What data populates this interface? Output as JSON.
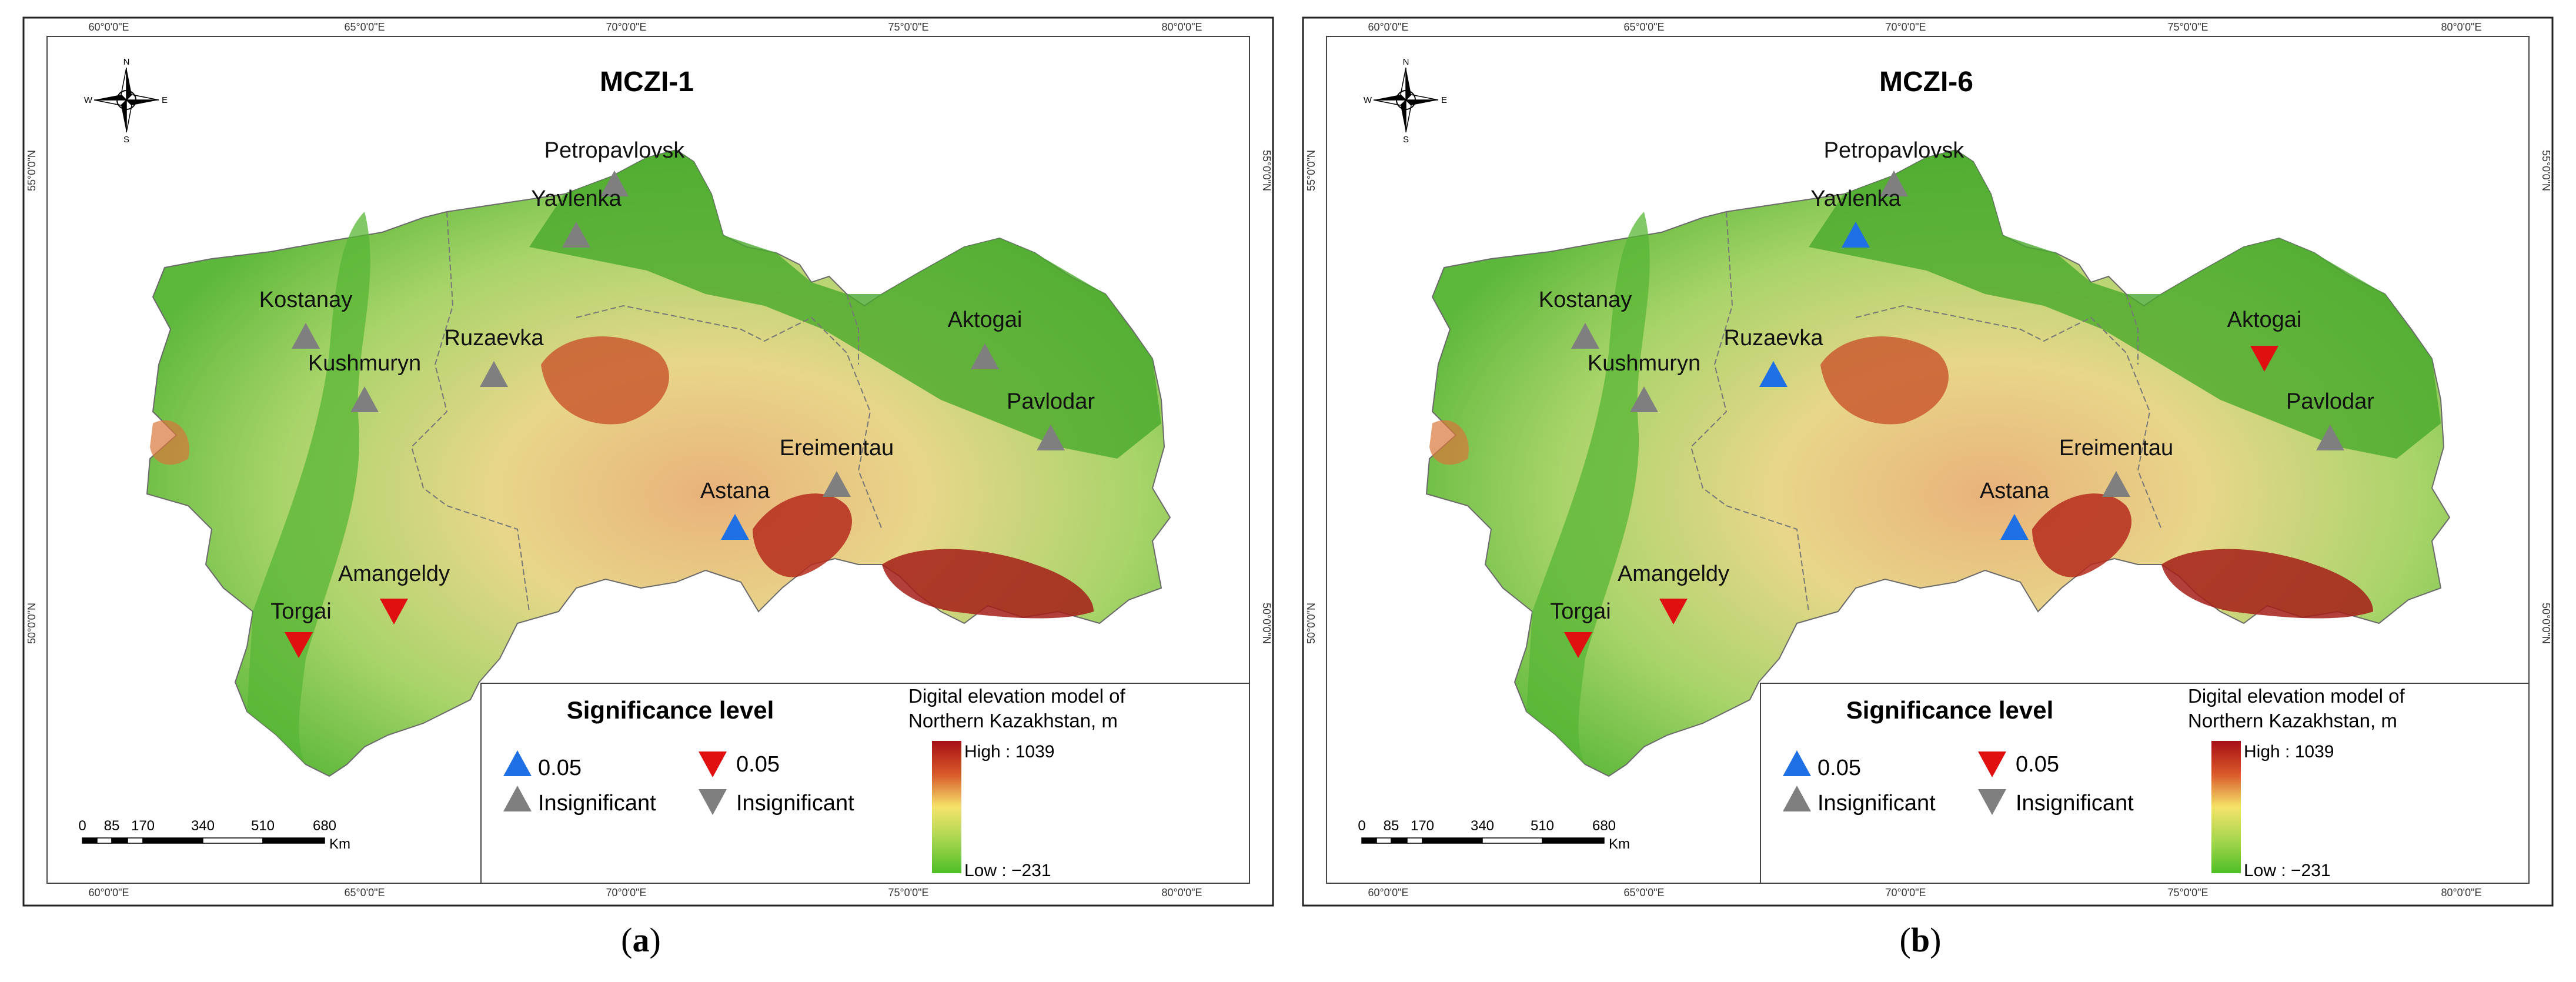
{
  "panels": [
    {
      "id": "a",
      "title": "MCZI-1",
      "caption_letter": "a",
      "stations": [
        {
          "name": "Petropavlovsk",
          "status": "insignificant-up"
        },
        {
          "name": "Yavlenka",
          "status": "insignificant-up"
        },
        {
          "name": "Kostanay",
          "status": "insignificant-up"
        },
        {
          "name": "Ruzaevka",
          "status": "insignificant-up"
        },
        {
          "name": "Kushmuryn",
          "status": "insignificant-up"
        },
        {
          "name": "Aktogai",
          "status": "insignificant-up"
        },
        {
          "name": "Pavlodar",
          "status": "insignificant-up"
        },
        {
          "name": "Ereimentau",
          "status": "insignificant-up"
        },
        {
          "name": "Astana",
          "status": "significant-up"
        },
        {
          "name": "Amangeldy",
          "status": "significant-down"
        },
        {
          "name": "Torgai",
          "status": "significant-down"
        }
      ]
    },
    {
      "id": "b",
      "title": "MCZI-6",
      "caption_letter": "b",
      "stations": [
        {
          "name": "Petropavlovsk",
          "status": "insignificant-up"
        },
        {
          "name": "Yavlenka",
          "status": "significant-up"
        },
        {
          "name": "Kostanay",
          "status": "insignificant-up"
        },
        {
          "name": "Ruzaevka",
          "status": "significant-up"
        },
        {
          "name": "Kushmuryn",
          "status": "insignificant-up"
        },
        {
          "name": "Aktogai",
          "status": "significant-down"
        },
        {
          "name": "Pavlodar",
          "status": "insignificant-up"
        },
        {
          "name": "Ereimentau",
          "status": "insignificant-up"
        },
        {
          "name": "Astana",
          "status": "significant-up"
        },
        {
          "name": "Amangeldy",
          "status": "significant-down"
        },
        {
          "name": "Torgai",
          "status": "significant-down"
        }
      ]
    }
  ],
  "legend": {
    "significance_title": "Significance level",
    "up_significant": "0.05",
    "up_insignificant": "Insignificant",
    "down_significant": "0.05",
    "down_insignificant": "Insignificant",
    "dem_title_line1": "Digital elevation model of",
    "dem_title_line2": "Northern Kazakhstan, m",
    "dem_high": "High : 1039",
    "dem_low": "Low : −231"
  },
  "scale_bar": {
    "ticks": [
      "0",
      "85",
      "170",
      "340",
      "510",
      "680"
    ],
    "unit": "Km"
  },
  "graticule": {
    "lon_labels": [
      "60°0'0\"E",
      "65°0'0\"E",
      "70°0'0\"E",
      "75°0'0\"E",
      "80°0'0\"E"
    ],
    "lat_labels": [
      "55°0'0\"N",
      "50°0'0\"N"
    ]
  },
  "compass": {
    "n": "N",
    "s": "S",
    "e": "E",
    "w": "W"
  },
  "colors": {
    "significant_up": "#1f6fe5",
    "significant_down": "#e01010",
    "insignificant": "#7f7f7f",
    "dem_high": "#a50f15",
    "dem_mid": "#f5e36a",
    "dem_low": "#4fbf26"
  }
}
